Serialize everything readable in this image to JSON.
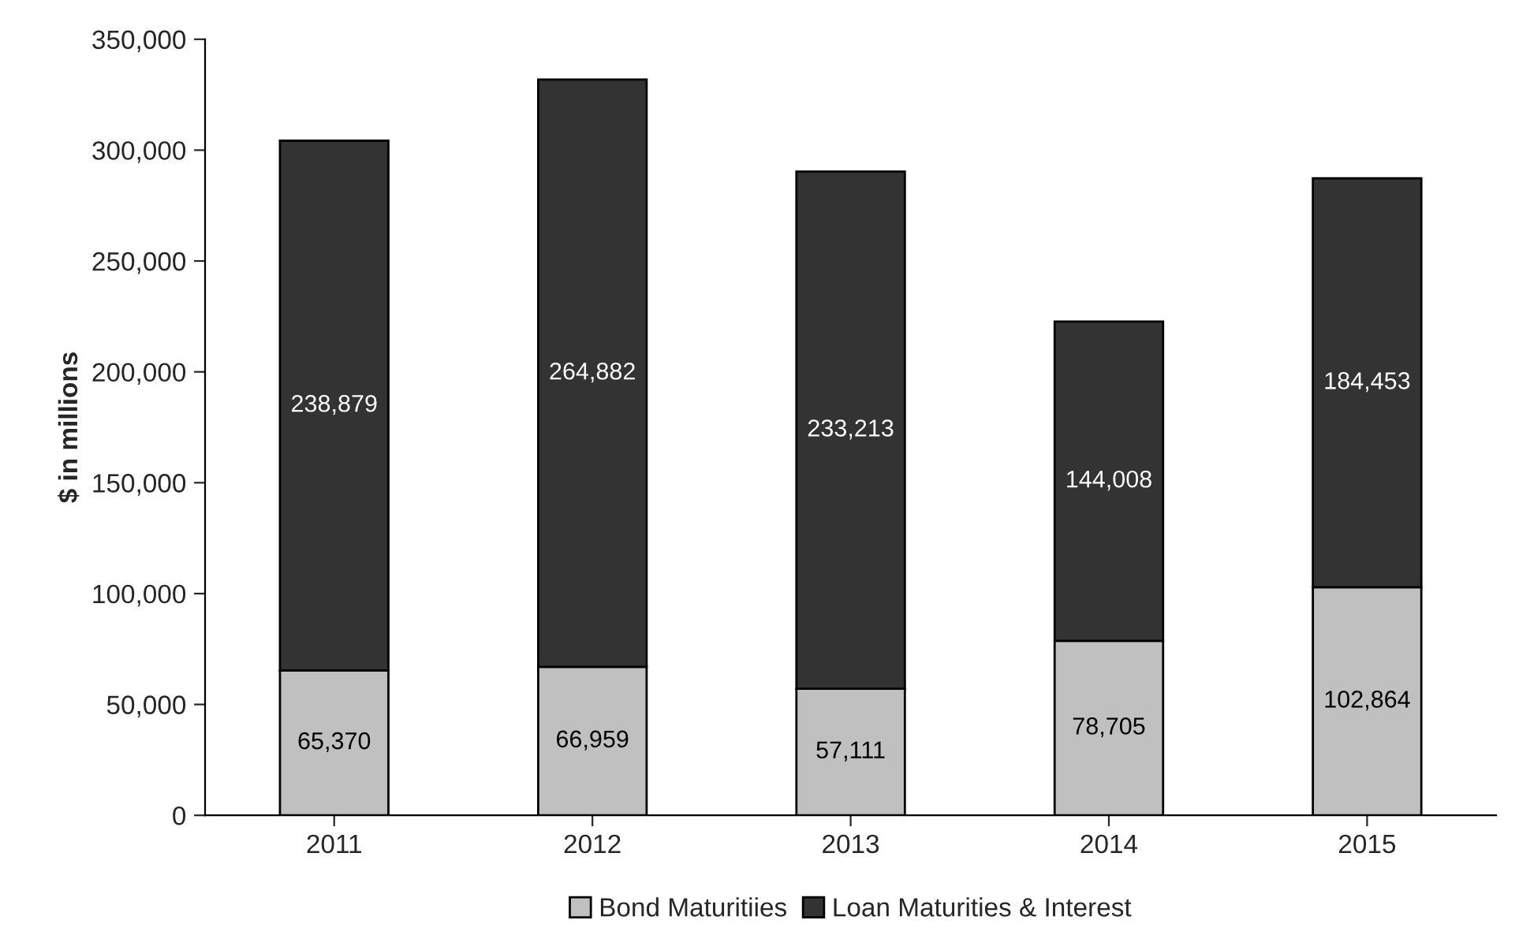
{
  "chart_data": {
    "type": "bar",
    "stacked": true,
    "ylabel": "$ in millions",
    "categories": [
      "2011",
      "2012",
      "2013",
      "2014",
      "2015"
    ],
    "series": [
      {
        "name": "Bond Maturitiies",
        "color": "#c0c0c0",
        "values": [
          65370,
          66959,
          57111,
          78705,
          102864
        ],
        "value_labels": [
          "65,370",
          "66,959",
          "57,111",
          "78,705",
          "102,864"
        ]
      },
      {
        "name": "Loan Maturities & Interest",
        "color": "#333333",
        "values": [
          238879,
          264882,
          233213,
          144008,
          184453
        ],
        "value_labels": [
          "238,879",
          "264,882",
          "233,213",
          "144,008",
          "184,453"
        ]
      }
    ],
    "ylim": [
      0,
      350000
    ],
    "yticks": [
      {
        "value": 0,
        "label": "0"
      },
      {
        "value": 50000,
        "label": "50,000"
      },
      {
        "value": 100000,
        "label": "100,000"
      },
      {
        "value": 150000,
        "label": "150,000"
      },
      {
        "value": 200000,
        "label": "200,000"
      },
      {
        "value": 250000,
        "label": "250,000"
      },
      {
        "value": 300000,
        "label": "300,000"
      },
      {
        "value": 350000,
        "label": "350,000"
      }
    ],
    "grid": false,
    "legend": "bottom"
  }
}
